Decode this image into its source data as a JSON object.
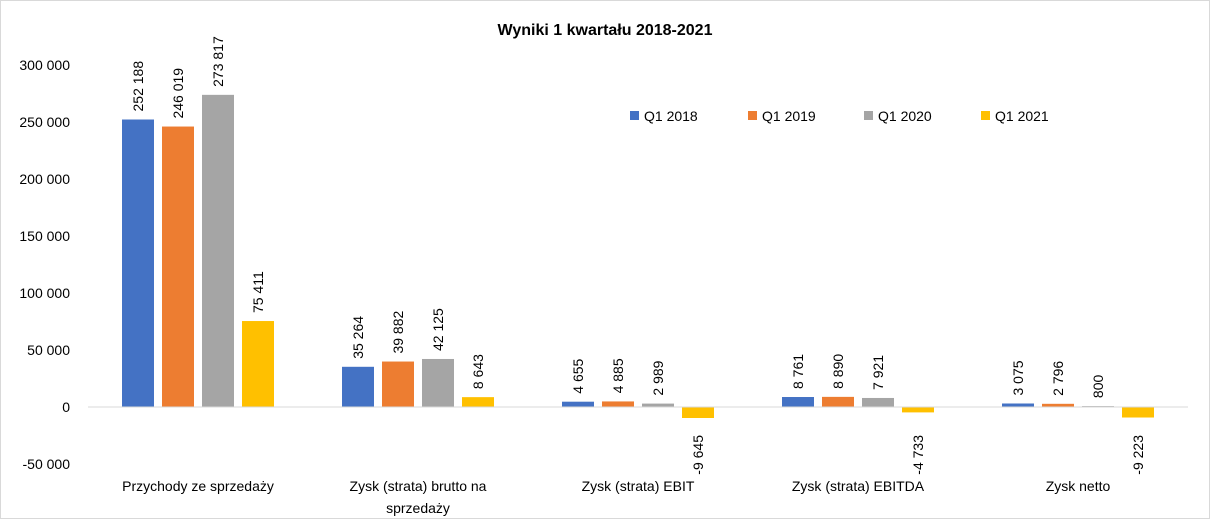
{
  "chart_data": {
    "type": "bar",
    "title": "Wyniki 1 kwartału 2018-2021",
    "categories": [
      [
        "Przychody ze sprzedaży"
      ],
      [
        "Zysk (strata) brutto na",
        "sprzedaży"
      ],
      [
        "Zysk (strata) EBIT"
      ],
      [
        "Zysk (strata) EBITDA"
      ],
      [
        "Zysk netto"
      ]
    ],
    "series": [
      {
        "name": "Q1 2018",
        "color": "#4472C4",
        "values": [
          252188,
          35264,
          4655,
          8761,
          3075
        ],
        "labels": [
          "252 188",
          "35 264",
          "4 655",
          "8 761",
          "3 075"
        ]
      },
      {
        "name": "Q1 2019",
        "color": "#ED7D31",
        "values": [
          246019,
          39882,
          4885,
          8890,
          2796
        ],
        "labels": [
          "246 019",
          "39 882",
          "4 885",
          "8 890",
          "2 796"
        ]
      },
      {
        "name": "Q1 2020",
        "color": "#A5A5A5",
        "values": [
          273817,
          42125,
          2989,
          7921,
          800
        ],
        "labels": [
          "273 817",
          "42 125",
          "2 989",
          "7 921",
          "800"
        ]
      },
      {
        "name": "Q1 2021",
        "color": "#FFC000",
        "values": [
          75411,
          8643,
          -9645,
          -4733,
          -9223
        ],
        "labels": [
          "75 411",
          "8 643",
          "-9 645",
          "-4 733",
          "-9 223"
        ]
      }
    ],
    "yticks": [
      -50000,
      0,
      50000,
      100000,
      150000,
      200000,
      250000,
      300000
    ],
    "ytick_labels": [
      "-50 000",
      "0",
      "50 000",
      "100 000",
      "150 000",
      "200 000",
      "250 000",
      "300 000"
    ],
    "ylim": [
      -50000,
      300000
    ],
    "grid": false,
    "legend": "top-right"
  }
}
